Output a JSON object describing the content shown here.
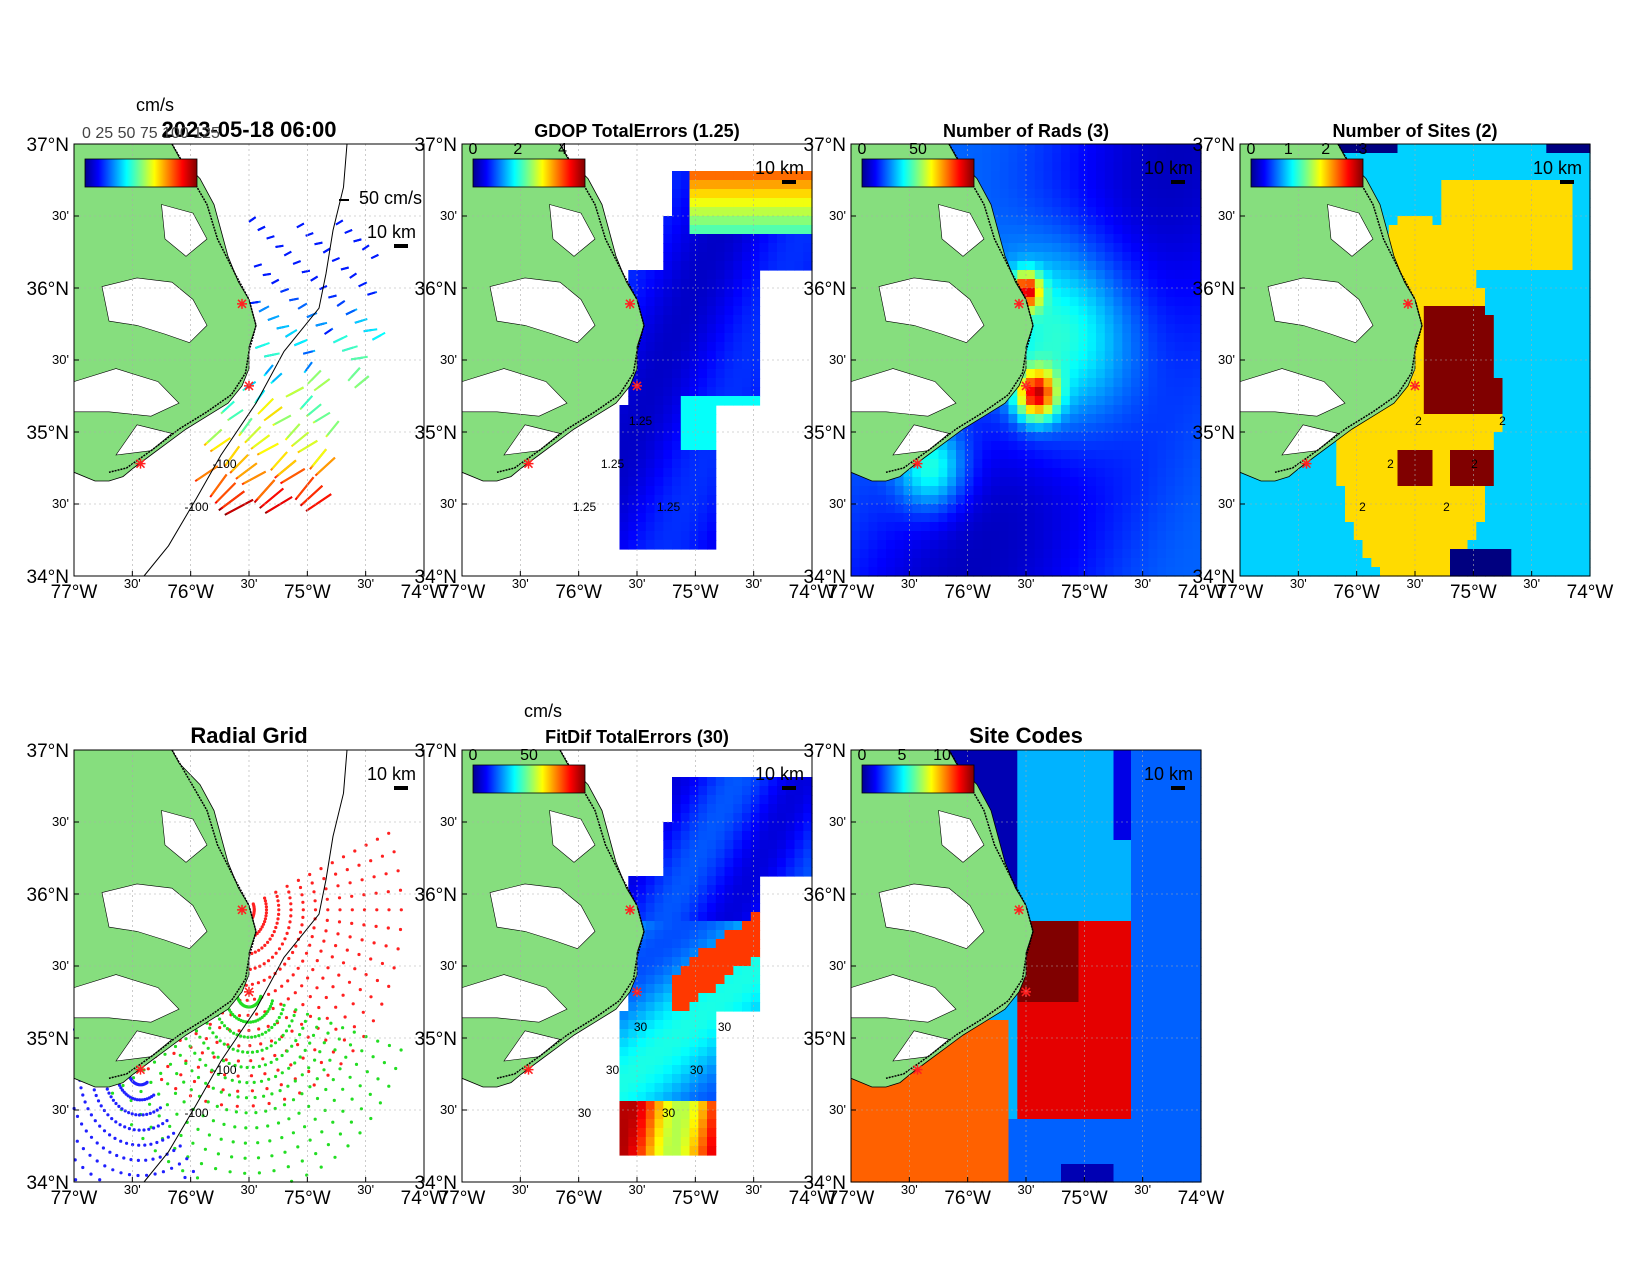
{
  "figure": {
    "colormap": "jet",
    "land_color": "#86de7e",
    "site_marker_color": "#ff2020",
    "contour_color": "#000000"
  },
  "axes": {
    "lon_ticks": [
      "77°W",
      "30'",
      "76°W",
      "30'",
      "75°W",
      "30'",
      "74°W"
    ],
    "lat_ticks": [
      "37°N",
      "30'",
      "36°N",
      "30'",
      "35°N",
      "30'",
      "34°N"
    ]
  },
  "panels": [
    {
      "id": "totals",
      "title": "2023-05-18 06:00",
      "colorbar_unit": "cm/s",
      "colorbar_ticks": [],
      "scale_vector": "50 cm/s",
      "scale_bar": "10 km",
      "contour_labels": [
        "-100",
        "-100"
      ],
      "legend_overlap_text": "0 25 50 75 100 125"
    },
    {
      "id": "gdop",
      "title": "GDOP TotalErrors (1.25)",
      "colorbar_unit": "",
      "colorbar_ticks": [
        "0",
        "2",
        "4"
      ],
      "scale_bar": "10 km",
      "contour_labels": [
        "1.25",
        "1.25",
        "1.25",
        "1.25"
      ]
    },
    {
      "id": "nrads",
      "title": "Number of Rads (3)",
      "colorbar_unit": "",
      "colorbar_ticks": [
        "0",
        "50"
      ],
      "scale_bar": "10 km",
      "contour_labels": []
    },
    {
      "id": "nsites",
      "title": "Number of Sites (2)",
      "colorbar_unit": "",
      "colorbar_ticks": [
        "0",
        "1",
        "2",
        "3"
      ],
      "scale_bar": "10 km",
      "contour_labels": [
        "2",
        "2",
        "2",
        "2",
        "2",
        "2"
      ]
    },
    {
      "id": "radgrid",
      "title": "Radial Grid",
      "colorbar_unit": "",
      "colorbar_ticks": [],
      "scale_bar": "10 km",
      "contour_labels": [
        "-100",
        "-100"
      ]
    },
    {
      "id": "fitdif",
      "title": "FitDif TotalErrors (30)",
      "colorbar_unit": "cm/s",
      "colorbar_ticks": [
        "0",
        "50"
      ],
      "scale_bar": "10 km",
      "contour_labels": [
        "30",
        "30",
        "30",
        "30",
        "30",
        "30"
      ]
    },
    {
      "id": "sitecodes",
      "title": "Site Codes",
      "colorbar_unit": "",
      "colorbar_ticks": [
        "0",
        "5",
        "10"
      ],
      "scale_bar": "10 km",
      "contour_labels": []
    }
  ],
  "chart_data": [
    {
      "type": "heatmap",
      "title": "2023-05-18 06:00",
      "content": "total current vectors colored by speed",
      "units": "cm/s",
      "xlim": [
        -77,
        -74
      ],
      "ylim": [
        34,
        37
      ],
      "scale_vector": "50 cm/s"
    },
    {
      "type": "heatmap",
      "title": "GDOP TotalErrors (1.25)",
      "clim": [
        0,
        5
      ],
      "colorbar_ticks": [
        0,
        2,
        4
      ],
      "contour_level": 1.25,
      "xlim": [
        -77,
        -74
      ],
      "ylim": [
        34,
        37
      ]
    },
    {
      "type": "heatmap",
      "title": "Number of Rads (3)",
      "clim": [
        0,
        100
      ],
      "colorbar_ticks": [
        0,
        50
      ],
      "contour_level": 3,
      "xlim": [
        -77,
        -74
      ],
      "ylim": [
        34,
        37
      ]
    },
    {
      "type": "heatmap",
      "title": "Number of Sites (2)",
      "clim": [
        0,
        3
      ],
      "colorbar_ticks": [
        0,
        1,
        2,
        3
      ],
      "contour_level": 2,
      "xlim": [
        -77,
        -74
      ],
      "ylim": [
        34,
        37
      ]
    },
    {
      "type": "scatter",
      "title": "Radial Grid",
      "series": [],
      "xlim": [
        -77,
        -74
      ],
      "ylim": [
        34,
        37
      ]
    },
    {
      "type": "heatmap",
      "title": "FitDif TotalErrors (30)",
      "units": "cm/s",
      "clim": [
        0,
        100
      ],
      "colorbar_ticks": [
        0,
        50
      ],
      "contour_level": 30,
      "xlim": [
        -77,
        -74
      ],
      "ylim": [
        34,
        37
      ]
    },
    {
      "type": "heatmap",
      "title": "Site Codes",
      "clim": [
        0,
        14
      ],
      "colorbar_ticks": [
        0,
        5,
        10
      ],
      "xlim": [
        -77,
        -74
      ],
      "ylim": [
        34,
        37
      ]
    }
  ]
}
